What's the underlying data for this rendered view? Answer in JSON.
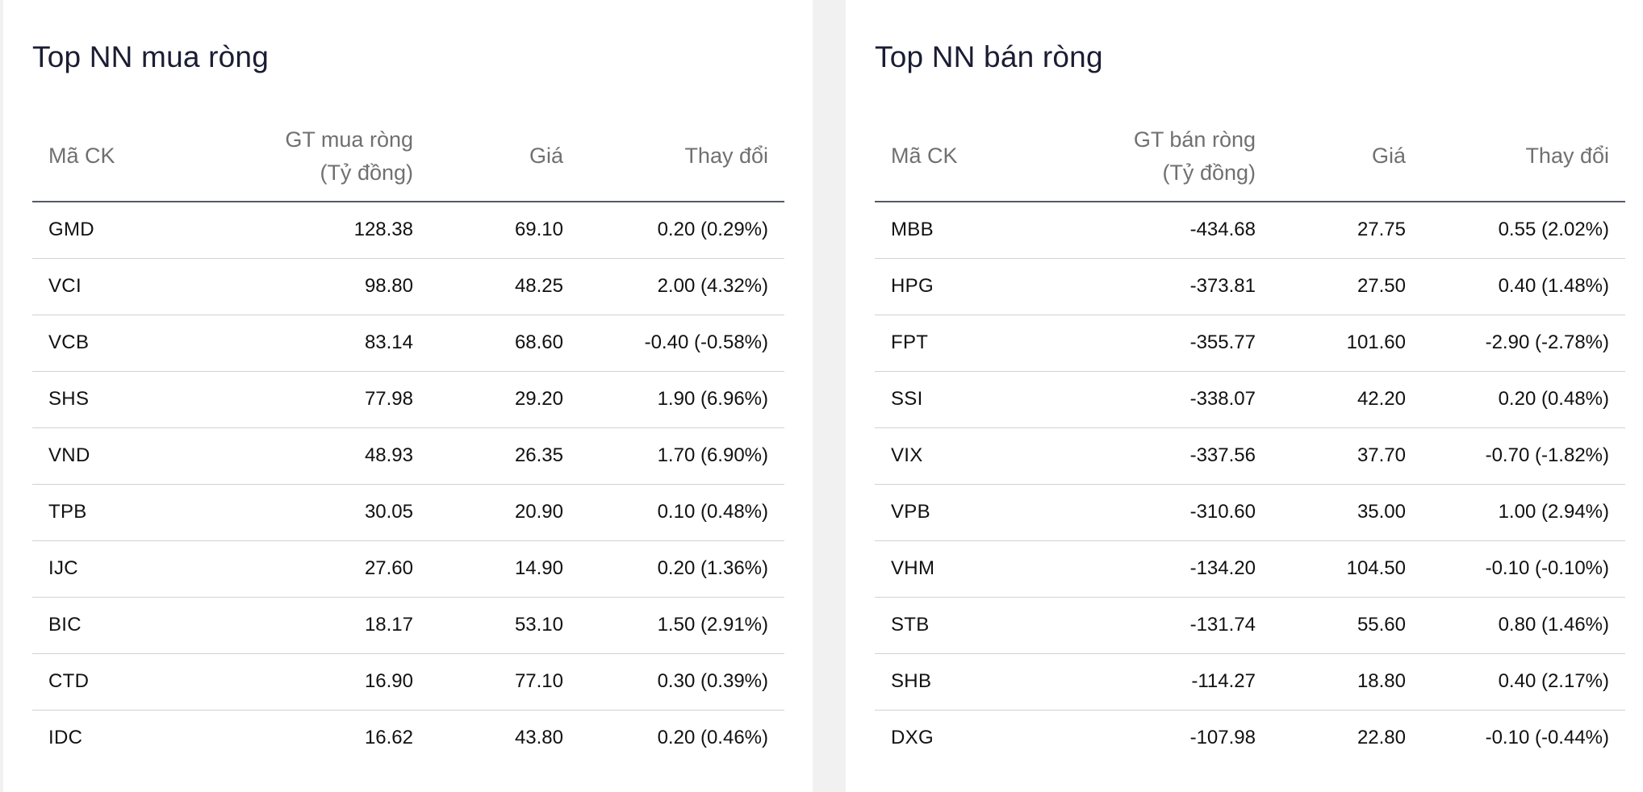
{
  "colors": {
    "up": "#4cbf5b",
    "down": "#e5413b",
    "ceiling": "#e432ea",
    "title": "#1a1d33",
    "header_text": "#707070"
  },
  "buy_panel": {
    "title": "Top NN mua ròng",
    "columns": {
      "code": "Mã CK",
      "value_line1": "GT mua ròng",
      "value_line2": "(Tỷ đồng)",
      "price": "Giá",
      "change": "Thay đổi"
    },
    "rows": [
      {
        "code": "GMD",
        "value": "128.38",
        "price": "69.10",
        "change": "0.20 (0.29%)",
        "status": "up"
      },
      {
        "code": "VCI",
        "value": "98.80",
        "price": "48.25",
        "change": "2.00 (4.32%)",
        "status": "up"
      },
      {
        "code": "VCB",
        "value": "83.14",
        "price": "68.60",
        "change": "-0.40 (-0.58%)",
        "status": "down"
      },
      {
        "code": "SHS",
        "value": "77.98",
        "price": "29.20",
        "change": "1.90 (6.96%)",
        "status": "up"
      },
      {
        "code": "VND",
        "value": "48.93",
        "price": "26.35",
        "change": "1.70 (6.90%)",
        "status": "ceiling"
      },
      {
        "code": "TPB",
        "value": "30.05",
        "price": "20.90",
        "change": "0.10 (0.48%)",
        "status": "up"
      },
      {
        "code": "IJC",
        "value": "27.60",
        "price": "14.90",
        "change": "0.20 (1.36%)",
        "status": "up"
      },
      {
        "code": "BIC",
        "value": "18.17",
        "price": "53.10",
        "change": "1.50 (2.91%)",
        "status": "up"
      },
      {
        "code": "CTD",
        "value": "16.90",
        "price": "77.10",
        "change": "0.30 (0.39%)",
        "status": "up"
      },
      {
        "code": "IDC",
        "value": "16.62",
        "price": "43.80",
        "change": "0.20 (0.46%)",
        "status": "up"
      }
    ]
  },
  "sell_panel": {
    "title": "Top NN bán ròng",
    "columns": {
      "code": "Mã CK",
      "value_line1": "GT bán ròng",
      "value_line2": "(Tỷ đồng)",
      "price": "Giá",
      "change": "Thay đổi"
    },
    "rows": [
      {
        "code": "MBB",
        "value": "-434.68",
        "price": "27.75",
        "change": "0.55 (2.02%)",
        "status": "up"
      },
      {
        "code": "HPG",
        "value": "-373.81",
        "price": "27.50",
        "change": "0.40 (1.48%)",
        "status": "up"
      },
      {
        "code": "FPT",
        "value": "-355.77",
        "price": "101.60",
        "change": "-2.90 (-2.78%)",
        "status": "down"
      },
      {
        "code": "SSI",
        "value": "-338.07",
        "price": "42.20",
        "change": "0.20 (0.48%)",
        "status": "up"
      },
      {
        "code": "VIX",
        "value": "-337.56",
        "price": "37.70",
        "change": "-0.70 (-1.82%)",
        "status": "down"
      },
      {
        "code": "VPB",
        "value": "-310.60",
        "price": "35.00",
        "change": "1.00 (2.94%)",
        "status": "up"
      },
      {
        "code": "VHM",
        "value": "-134.20",
        "price": "104.50",
        "change": "-0.10 (-0.10%)",
        "status": "down"
      },
      {
        "code": "STB",
        "value": "-131.74",
        "price": "55.60",
        "change": "0.80 (1.46%)",
        "status": "up"
      },
      {
        "code": "SHB",
        "value": "-114.27",
        "price": "18.80",
        "change": "0.40 (2.17%)",
        "status": "up"
      },
      {
        "code": "DXG",
        "value": "-107.98",
        "price": "22.80",
        "change": "-0.10 (-0.44%)",
        "status": "down"
      }
    ]
  }
}
